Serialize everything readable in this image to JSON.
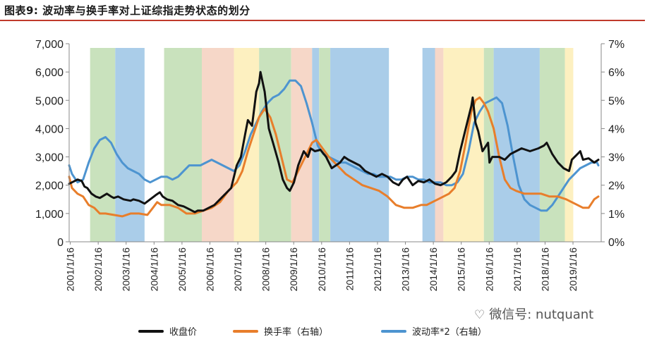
{
  "title": "图表9: 波动率与换手率对上证综指走势状态的划分",
  "watermark": "微信号: nutquant",
  "chart_data": {
    "type": "line",
    "title": "图表9: 波动率与换手率对上证综指走势状态的划分",
    "x_type": "date",
    "x_ticks": [
      "2001/1/16",
      "2002/1/16",
      "2003/1/16",
      "2004/1/16",
      "2005/1/16",
      "2006/1/16",
      "2007/1/16",
      "2008/1/16",
      "2009/1/16",
      "2010/1/16",
      "2011/1/16",
      "2012/1/16",
      "2013/1/16",
      "2014/1/16",
      "2015/1/16",
      "2016/1/16",
      "2017/1/16",
      "2018/1/16",
      "2019/1/16"
    ],
    "xlim": [
      2001.0,
      2020.05
    ],
    "left_axis": {
      "ylim": [
        0,
        7000
      ],
      "ticks": [
        "0",
        "1,000",
        "2,000",
        "3,000",
        "4,000",
        "5,000",
        "6,000",
        "7,000"
      ],
      "tick_values": [
        0,
        1000,
        2000,
        3000,
        4000,
        5000,
        6000,
        7000
      ]
    },
    "right_axis": {
      "ylim": [
        0,
        7
      ],
      "ticks": [
        "0%",
        "1%",
        "2%",
        "3%",
        "4%",
        "5%",
        "6%",
        "7%"
      ],
      "tick_values": [
        0,
        1,
        2,
        3,
        4,
        5,
        6,
        7
      ]
    },
    "regimes": [
      {
        "start": 2001.75,
        "end": 2002.65,
        "state": "green"
      },
      {
        "start": 2002.65,
        "end": 2003.7,
        "state": "blue"
      },
      {
        "start": 2004.4,
        "end": 2005.75,
        "state": "green"
      },
      {
        "start": 2005.75,
        "end": 2006.9,
        "state": "salmon"
      },
      {
        "start": 2006.9,
        "end": 2007.8,
        "state": "yellow"
      },
      {
        "start": 2007.8,
        "end": 2008.95,
        "state": "green"
      },
      {
        "start": 2008.95,
        "end": 2009.7,
        "state": "salmon"
      },
      {
        "start": 2009.7,
        "end": 2009.95,
        "state": "blue"
      },
      {
        "start": 2009.95,
        "end": 2010.35,
        "state": "green"
      },
      {
        "start": 2010.35,
        "end": 2012.45,
        "state": "blue"
      },
      {
        "start": 2013.65,
        "end": 2014.1,
        "state": "blue"
      },
      {
        "start": 2014.1,
        "end": 2014.4,
        "state": "salmon"
      },
      {
        "start": 2014.4,
        "end": 2015.85,
        "state": "yellow"
      },
      {
        "start": 2015.85,
        "end": 2016.2,
        "state": "green"
      },
      {
        "start": 2016.2,
        "end": 2017.85,
        "state": "blue"
      },
      {
        "start": 2017.85,
        "end": 2018.75,
        "state": "green"
      },
      {
        "start": 2018.75,
        "end": 2019.05,
        "state": "yellow"
      }
    ],
    "regime_colors": {
      "green": "#c9e2bd",
      "blue": "#aacde9",
      "salmon": "#f6d7c8",
      "yellow": "#fdf0c0"
    },
    "series": [
      {
        "name": "收盘价",
        "axis": "left",
        "color": "#111111",
        "x": [
          2001.0,
          2001.1,
          2001.3,
          2001.45,
          2001.55,
          2001.65,
          2001.8,
          2001.95,
          2002.1,
          2002.35,
          2002.5,
          2002.6,
          2002.75,
          2002.95,
          2003.2,
          2003.3,
          2003.5,
          2003.7,
          2003.9,
          2004.1,
          2004.25,
          2004.35,
          2004.5,
          2004.7,
          2004.9,
          2005.1,
          2005.3,
          2005.5,
          2005.6,
          2005.8,
          2006.0,
          2006.2,
          2006.4,
          2006.6,
          2006.8,
          2007.0,
          2007.15,
          2007.3,
          2007.4,
          2007.55,
          2007.7,
          2007.8,
          2007.85,
          2008.0,
          2008.15,
          2008.3,
          2008.5,
          2008.65,
          2008.8,
          2008.9,
          2009.05,
          2009.2,
          2009.4,
          2009.55,
          2009.65,
          2009.8,
          2010.0,
          2010.2,
          2010.4,
          2010.55,
          2010.7,
          2010.85,
          2011.0,
          2011.2,
          2011.4,
          2011.6,
          2011.8,
          2012.0,
          2012.2,
          2012.4,
          2012.6,
          2012.8,
          2012.95,
          2013.1,
          2013.3,
          2013.5,
          2013.7,
          2013.9,
          2014.1,
          2014.3,
          2014.5,
          2014.7,
          2014.85,
          2015.0,
          2015.2,
          2015.4,
          2015.45,
          2015.55,
          2015.65,
          2015.8,
          2016.0,
          2016.05,
          2016.15,
          2016.4,
          2016.6,
          2016.8,
          2017.0,
          2017.2,
          2017.5,
          2017.8,
          2018.0,
          2018.1,
          2018.3,
          2018.5,
          2018.7,
          2018.9,
          2019.0,
          2019.2,
          2019.3,
          2019.4,
          2019.6,
          2019.8,
          2019.95
        ],
        "y": [
          2050,
          2100,
          2200,
          2150,
          1950,
          1900,
          1700,
          1600,
          1550,
          1700,
          1600,
          1550,
          1600,
          1500,
          1450,
          1500,
          1450,
          1350,
          1500,
          1650,
          1750,
          1600,
          1500,
          1450,
          1300,
          1250,
          1150,
          1050,
          1100,
          1100,
          1200,
          1300,
          1500,
          1700,
          1900,
          2700,
          3000,
          3800,
          4300,
          4100,
          5300,
          5600,
          6000,
          5300,
          4000,
          3500,
          2800,
          2200,
          1900,
          1800,
          2100,
          2700,
          3200,
          3000,
          3300,
          3200,
          3250,
          3000,
          2600,
          2700,
          2800,
          3000,
          2900,
          2800,
          2700,
          2500,
          2400,
          2300,
          2400,
          2300,
          2100,
          2000,
          2200,
          2300,
          2000,
          2150,
          2100,
          2200,
          2050,
          2000,
          2100,
          2300,
          2500,
          3200,
          4000,
          4800,
          5100,
          4200,
          3900,
          3200,
          3500,
          2800,
          3000,
          3000,
          2900,
          3100,
          3200,
          3300,
          3200,
          3300,
          3400,
          3500,
          3100,
          2800,
          2600,
          2500,
          2900,
          3100,
          3200,
          2900,
          2950,
          2800,
          2900
        ]
      },
      {
        "name": "换手率（右轴）",
        "axis": "right",
        "color": "#e87e2b",
        "x": [
          2001.0,
          2001.1,
          2001.3,
          2001.5,
          2001.7,
          2001.9,
          2002.1,
          2002.3,
          2002.6,
          2002.9,
          2003.2,
          2003.5,
          2003.8,
          2004.0,
          2004.15,
          2004.3,
          2004.6,
          2004.9,
          2005.2,
          2005.5,
          2005.8,
          2006.1,
          2006.4,
          2006.7,
          2007.0,
          2007.2,
          2007.4,
          2007.6,
          2007.8,
          2008.0,
          2008.2,
          2008.4,
          2008.6,
          2008.8,
          2009.0,
          2009.2,
          2009.4,
          2009.55,
          2009.7,
          2009.85,
          2010.0,
          2010.3,
          2010.6,
          2010.9,
          2011.2,
          2011.5,
          2011.8,
          2012.1,
          2012.4,
          2012.7,
          2013.0,
          2013.3,
          2013.6,
          2013.8,
          2014.0,
          2014.2,
          2014.4,
          2014.6,
          2014.8,
          2015.0,
          2015.2,
          2015.4,
          2015.55,
          2015.7,
          2015.85,
          2016.0,
          2016.2,
          2016.4,
          2016.6,
          2016.8,
          2017.0,
          2017.3,
          2017.6,
          2017.9,
          2018.2,
          2018.5,
          2018.8,
          2019.0,
          2019.2,
          2019.4,
          2019.6,
          2019.8,
          2019.95
        ],
        "y": [
          2.3,
          1.9,
          1.7,
          1.6,
          1.3,
          1.2,
          1.0,
          1.0,
          0.95,
          0.9,
          1.0,
          1.0,
          0.95,
          1.2,
          1.4,
          1.3,
          1.3,
          1.2,
          1.0,
          1.0,
          1.1,
          1.2,
          1.4,
          1.8,
          2.1,
          2.5,
          3.2,
          3.8,
          4.4,
          4.7,
          4.4,
          3.8,
          3.0,
          2.2,
          2.1,
          2.5,
          2.9,
          3.2,
          3.5,
          3.6,
          3.4,
          3.0,
          2.7,
          2.4,
          2.2,
          2.0,
          1.9,
          1.8,
          1.6,
          1.3,
          1.2,
          1.2,
          1.3,
          1.3,
          1.4,
          1.5,
          1.6,
          1.7,
          1.9,
          2.5,
          3.5,
          4.6,
          5.0,
          5.1,
          4.9,
          4.6,
          4.0,
          3.0,
          2.2,
          1.9,
          1.8,
          1.7,
          1.7,
          1.7,
          1.6,
          1.6,
          1.5,
          1.4,
          1.3,
          1.2,
          1.2,
          1.5,
          1.6
        ]
      },
      {
        "name": "波动率*2（右轴）",
        "axis": "right",
        "color": "#4d94d0",
        "x": [
          2001.0,
          2001.1,
          2001.3,
          2001.5,
          2001.7,
          2001.9,
          2002.1,
          2002.3,
          2002.5,
          2002.7,
          2002.9,
          2003.1,
          2003.3,
          2003.5,
          2003.7,
          2003.9,
          2004.1,
          2004.3,
          2004.5,
          2004.7,
          2004.9,
          2005.1,
          2005.3,
          2005.5,
          2005.7,
          2005.9,
          2006.1,
          2006.3,
          2006.5,
          2006.7,
          2006.9,
          2007.1,
          2007.3,
          2007.5,
          2007.7,
          2007.9,
          2008.1,
          2008.3,
          2008.5,
          2008.7,
          2008.9,
          2009.1,
          2009.3,
          2009.5,
          2009.7,
          2009.9,
          2010.1,
          2010.3,
          2010.5,
          2010.7,
          2010.9,
          2011.1,
          2011.3,
          2011.5,
          2011.7,
          2011.9,
          2012.1,
          2012.3,
          2012.5,
          2012.7,
          2012.9,
          2013.1,
          2013.3,
          2013.5,
          2013.7,
          2013.9,
          2014.1,
          2014.3,
          2014.5,
          2014.7,
          2014.9,
          2015.1,
          2015.3,
          2015.5,
          2015.7,
          2015.9,
          2016.1,
          2016.3,
          2016.5,
          2016.7,
          2016.9,
          2017.1,
          2017.3,
          2017.5,
          2017.7,
          2017.9,
          2018.1,
          2018.3,
          2018.5,
          2018.7,
          2018.9,
          2019.1,
          2019.3,
          2019.5,
          2019.7,
          2019.9,
          2019.95
        ],
        "y": [
          2.7,
          2.4,
          2.1,
          2.2,
          2.8,
          3.3,
          3.6,
          3.7,
          3.5,
          3.1,
          2.8,
          2.6,
          2.5,
          2.4,
          2.2,
          2.1,
          2.2,
          2.3,
          2.3,
          2.2,
          2.3,
          2.5,
          2.7,
          2.7,
          2.7,
          2.8,
          2.9,
          2.8,
          2.7,
          2.6,
          2.5,
          2.7,
          3.2,
          3.8,
          4.2,
          4.6,
          4.9,
          5.1,
          5.2,
          5.4,
          5.7,
          5.7,
          5.5,
          4.9,
          4.2,
          3.4,
          3.1,
          3.0,
          2.9,
          2.8,
          2.8,
          2.7,
          2.6,
          2.5,
          2.4,
          2.4,
          2.3,
          2.3,
          2.3,
          2.2,
          2.2,
          2.3,
          2.3,
          2.2,
          2.2,
          2.1,
          2.1,
          2.1,
          2.0,
          2.0,
          2.1,
          2.4,
          3.2,
          4.2,
          4.6,
          4.9,
          5.0,
          5.1,
          4.9,
          4.1,
          3.0,
          2.0,
          1.5,
          1.3,
          1.2,
          1.1,
          1.1,
          1.3,
          1.6,
          1.9,
          2.2,
          2.4,
          2.6,
          2.7,
          2.8,
          2.8,
          2.7
        ]
      }
    ],
    "legend": [
      {
        "label": "收盘价",
        "color": "#111111"
      },
      {
        "label": "换手率（右轴）",
        "color": "#e87e2b"
      },
      {
        "label": "波动率*2（右轴）",
        "color": "#4d94d0"
      }
    ],
    "legend_position": "bottom"
  }
}
